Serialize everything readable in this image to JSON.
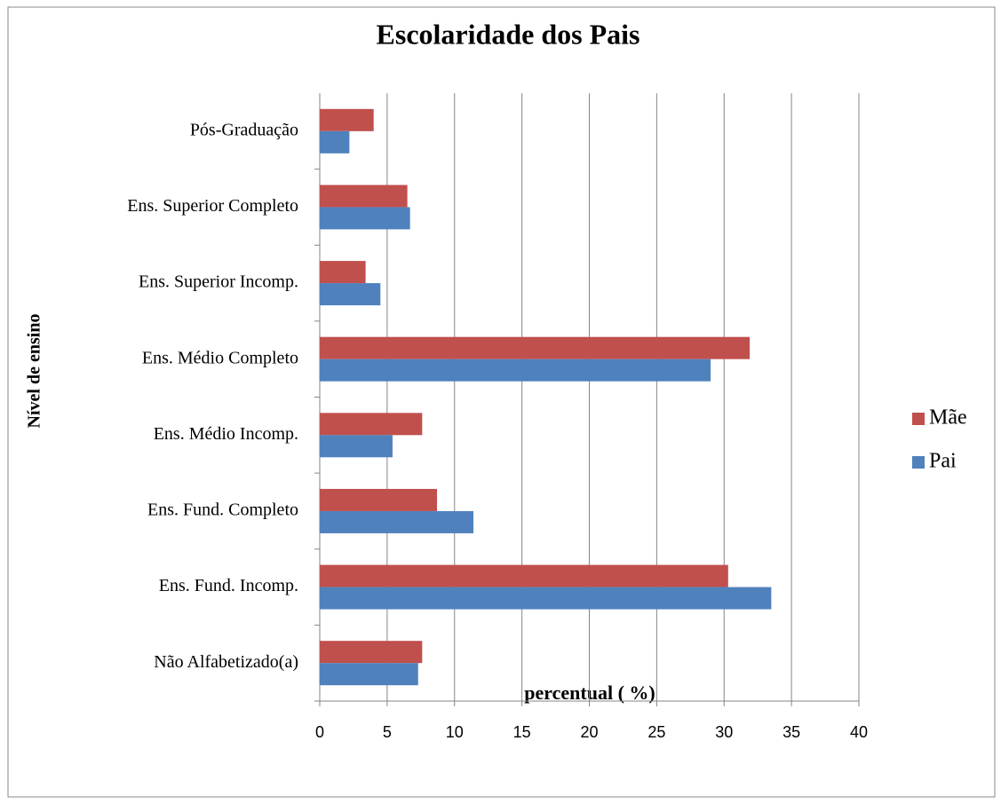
{
  "chart_data": {
    "type": "barh",
    "title": "Escolaridade dos Pais",
    "ylabel": "Nível de ensino",
    "xlabel": "percentual ( %)",
    "categories": [
      "Não Alfabetizado(a)",
      "Ens. Fund. Incomp.",
      "Ens. Fund. Completo",
      "Ens. Médio Incomp.",
      "Ens. Médio Completo",
      "Ens. Superior Incomp.",
      "Ens. Superior Completo",
      "Pós-Graduação"
    ],
    "series": [
      {
        "name": "Mãe",
        "color": "#c0504d",
        "values": [
          7.6,
          30.3,
          8.7,
          7.6,
          31.9,
          3.4,
          6.5,
          4.0
        ]
      },
      {
        "name": "Pai",
        "color": "#4f81bd",
        "values": [
          7.3,
          33.5,
          11.4,
          5.4,
          29.0,
          4.5,
          6.7,
          2.2
        ]
      }
    ],
    "xlim": [
      0,
      40
    ],
    "xticks": [
      0,
      5,
      10,
      15,
      20,
      25,
      30,
      35,
      40
    ],
    "grid": true,
    "legend": "right"
  }
}
